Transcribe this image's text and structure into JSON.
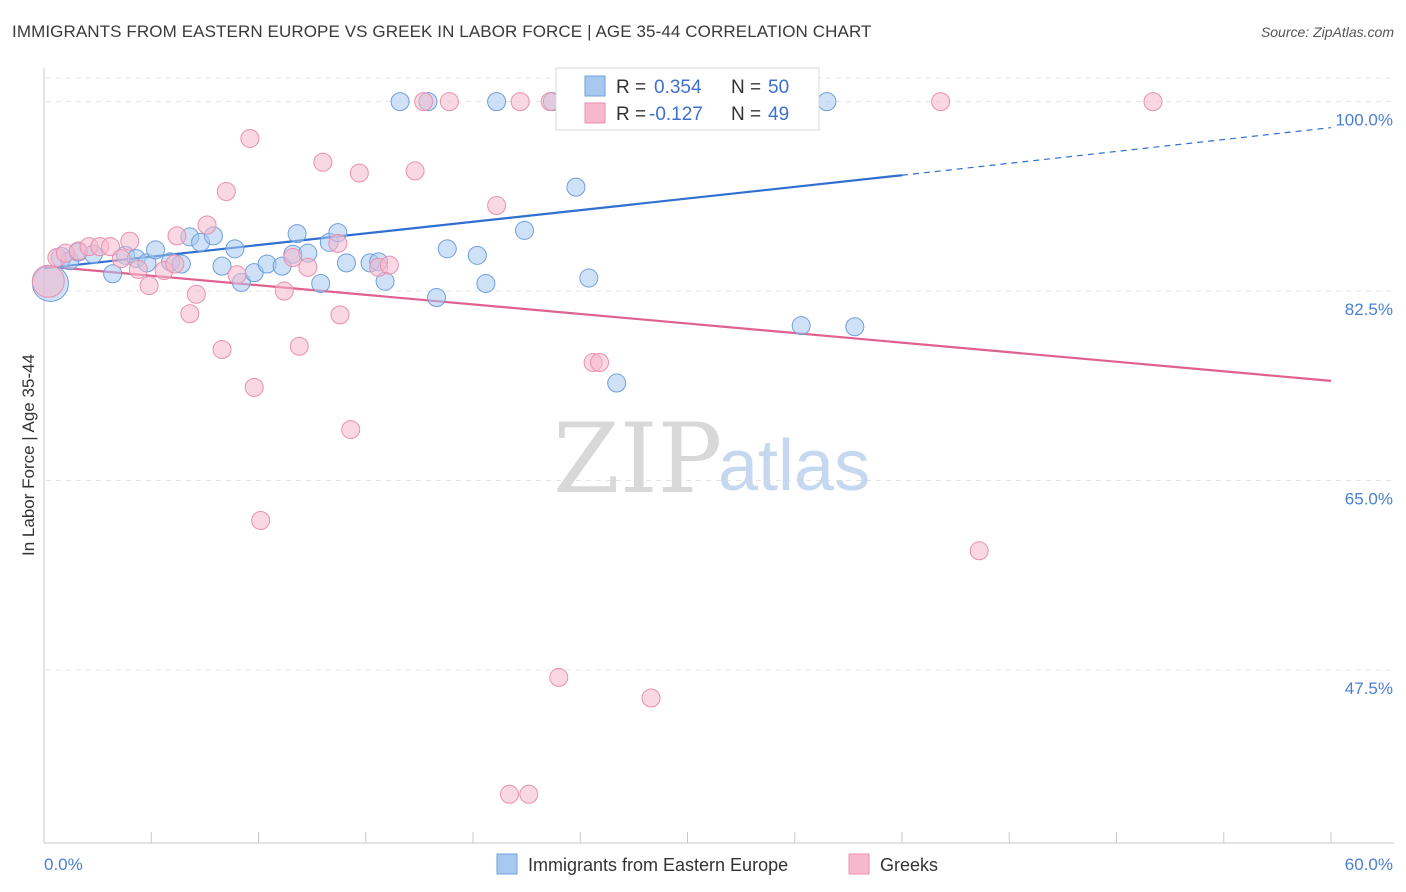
{
  "title": "IMMIGRANTS FROM EASTERN EUROPE VS GREEK IN LABOR FORCE | AGE 35-44 CORRELATION CHART",
  "source": "Source: ZipAtlas.com",
  "watermark": {
    "zip": "ZIP",
    "atlas": "atlas"
  },
  "colors": {
    "blue_fill": "#a8c8f0",
    "blue_stroke": "#6f9fdc",
    "blue_line": "#2f6fcf",
    "pink_fill": "#f6b8cc",
    "pink_stroke": "#ea8fad",
    "pink_line": "#e0608f",
    "grid": "#e3e3e3",
    "axis_label": "#4a7fd0"
  },
  "chart_data": {
    "type": "scatter",
    "title": "IMMIGRANTS FROM EASTERN EUROPE VS GREEK IN LABOR FORCE | AGE 35-44 CORRELATION CHART",
    "xlabel": "",
    "ylabel": "In Labor Force | Age 35-44",
    "xlim": [
      0,
      60
    ],
    "ylim": [
      31.5,
      102
    ],
    "x_tick_labels": [
      {
        "value": 0,
        "label": "0.0%"
      },
      {
        "value": 60,
        "label": "60.0%"
      }
    ],
    "y_ticks": [
      {
        "value": 100,
        "label": "100.0%"
      },
      {
        "value": 82.5,
        "label": "82.5%"
      },
      {
        "value": 65,
        "label": "65.0%"
      },
      {
        "value": 47.5,
        "label": "47.5%"
      }
    ],
    "grid": true,
    "legend_position": "bottom-center",
    "stats_box": [
      {
        "r_label": "R =",
        "r": "0.354",
        "n_label": "N =",
        "n": "50"
      },
      {
        "r_label": "R =",
        "r": "-0.127",
        "n_label": "N =",
        "n": "49"
      }
    ],
    "series": [
      {
        "name": "Immigrants from Eastern Europe",
        "color_key": "blue",
        "trend": {
          "x0": 0,
          "y0": 84.6,
          "x1": 40,
          "y1": 93.2,
          "dashed_to_x": 60,
          "dashed_to_y": 97.6
        },
        "points": [
          [
            0.3,
            83.2,
            18
          ],
          [
            0.8,
            85.6,
            10
          ],
          [
            1.2,
            85.3,
            9
          ],
          [
            1.6,
            86.1,
            9
          ],
          [
            2.3,
            85.9,
            9
          ],
          [
            3.2,
            84.1,
            9
          ],
          [
            3.8,
            85.8,
            9
          ],
          [
            4.3,
            85.5,
            9
          ],
          [
            4.8,
            85.1,
            9
          ],
          [
            5.2,
            86.3,
            9
          ],
          [
            5.9,
            85.2,
            9
          ],
          [
            6.4,
            85.0,
            9
          ],
          [
            6.8,
            87.5,
            9
          ],
          [
            7.3,
            87.0,
            9
          ],
          [
            7.9,
            87.6,
            9
          ],
          [
            8.3,
            84.8,
            9
          ],
          [
            8.9,
            86.4,
            9
          ],
          [
            9.2,
            83.3,
            9
          ],
          [
            9.8,
            84.2,
            9
          ],
          [
            10.4,
            85.0,
            9
          ],
          [
            11.1,
            84.8,
            9
          ],
          [
            11.6,
            85.9,
            9
          ],
          [
            12.3,
            86.0,
            9
          ],
          [
            11.8,
            87.8,
            9
          ],
          [
            12.9,
            83.2,
            9
          ],
          [
            13.3,
            87.0,
            9
          ],
          [
            13.7,
            87.9,
            9
          ],
          [
            14.1,
            85.1,
            9
          ],
          [
            15.2,
            85.1,
            9
          ],
          [
            15.6,
            85.2,
            9
          ],
          [
            15.9,
            83.4,
            9
          ],
          [
            16.6,
            100.0,
            9
          ],
          [
            17.9,
            100.0,
            9
          ],
          [
            18.3,
            81.9,
            9
          ],
          [
            18.8,
            86.4,
            9
          ],
          [
            20.2,
            85.8,
            9
          ],
          [
            20.6,
            83.2,
            9
          ],
          [
            21.1,
            100.0,
            9
          ],
          [
            22.4,
            88.1,
            9
          ],
          [
            23.7,
            100.0,
            9
          ],
          [
            24.5,
            100.0,
            9
          ],
          [
            24.8,
            92.1,
            9
          ],
          [
            25.4,
            83.7,
            9
          ],
          [
            26.7,
            74.0,
            9
          ],
          [
            27.0,
            100.0,
            9
          ],
          [
            28.2,
            100.0,
            9
          ],
          [
            32.8,
            100.0,
            9
          ],
          [
            35.3,
            79.3,
            9
          ],
          [
            36.5,
            100.0,
            9
          ],
          [
            37.8,
            79.2,
            9
          ]
        ]
      },
      {
        "name": "Greeks",
        "color_key": "pink",
        "trend": {
          "x0": 0,
          "y0": 84.8,
          "x1": 60,
          "y1": 74.2
        },
        "points": [
          [
            0.2,
            83.4,
            16
          ],
          [
            0.6,
            85.6,
            9
          ],
          [
            1.0,
            86.0,
            9
          ],
          [
            1.6,
            86.2,
            9
          ],
          [
            2.1,
            86.6,
            9
          ],
          [
            2.6,
            86.6,
            9
          ],
          [
            3.1,
            86.6,
            9
          ],
          [
            3.6,
            85.5,
            9
          ],
          [
            4.0,
            87.1,
            9
          ],
          [
            4.4,
            84.5,
            9
          ],
          [
            4.9,
            83.0,
            9
          ],
          [
            5.6,
            84.4,
            9
          ],
          [
            6.1,
            85.0,
            9
          ],
          [
            6.2,
            87.6,
            9
          ],
          [
            6.8,
            80.4,
            9
          ],
          [
            7.1,
            82.2,
            9
          ],
          [
            7.6,
            88.6,
            9
          ],
          [
            8.3,
            77.1,
            9
          ],
          [
            8.5,
            91.7,
            9
          ],
          [
            9.0,
            84.0,
            9
          ],
          [
            9.6,
            96.6,
            9
          ],
          [
            9.8,
            73.6,
            9
          ],
          [
            10.1,
            61.3,
            9
          ],
          [
            11.2,
            82.5,
            9
          ],
          [
            11.6,
            85.6,
            9
          ],
          [
            11.9,
            77.4,
            9
          ],
          [
            12.3,
            84.7,
            9
          ],
          [
            13.0,
            94.4,
            9
          ],
          [
            13.7,
            86.9,
            9
          ],
          [
            13.8,
            80.3,
            9
          ],
          [
            14.3,
            69.7,
            9
          ],
          [
            14.7,
            93.4,
            9
          ],
          [
            15.6,
            84.7,
            9
          ],
          [
            16.1,
            84.9,
            9
          ],
          [
            17.3,
            93.6,
            9
          ],
          [
            17.7,
            100.0,
            9
          ],
          [
            18.9,
            100.0,
            9
          ],
          [
            21.1,
            90.4,
            9
          ],
          [
            21.7,
            36.0,
            9
          ],
          [
            22.2,
            100.0,
            9
          ],
          [
            22.6,
            36.0,
            9
          ],
          [
            23.6,
            100.0,
            9
          ],
          [
            24.0,
            46.8,
            9
          ],
          [
            25.6,
            75.9,
            9
          ],
          [
            25.9,
            75.9,
            9
          ],
          [
            28.3,
            44.9,
            9
          ],
          [
            41.8,
            100.0,
            9
          ],
          [
            43.6,
            58.5,
            9
          ],
          [
            51.7,
            100.0,
            9
          ]
        ]
      }
    ]
  }
}
